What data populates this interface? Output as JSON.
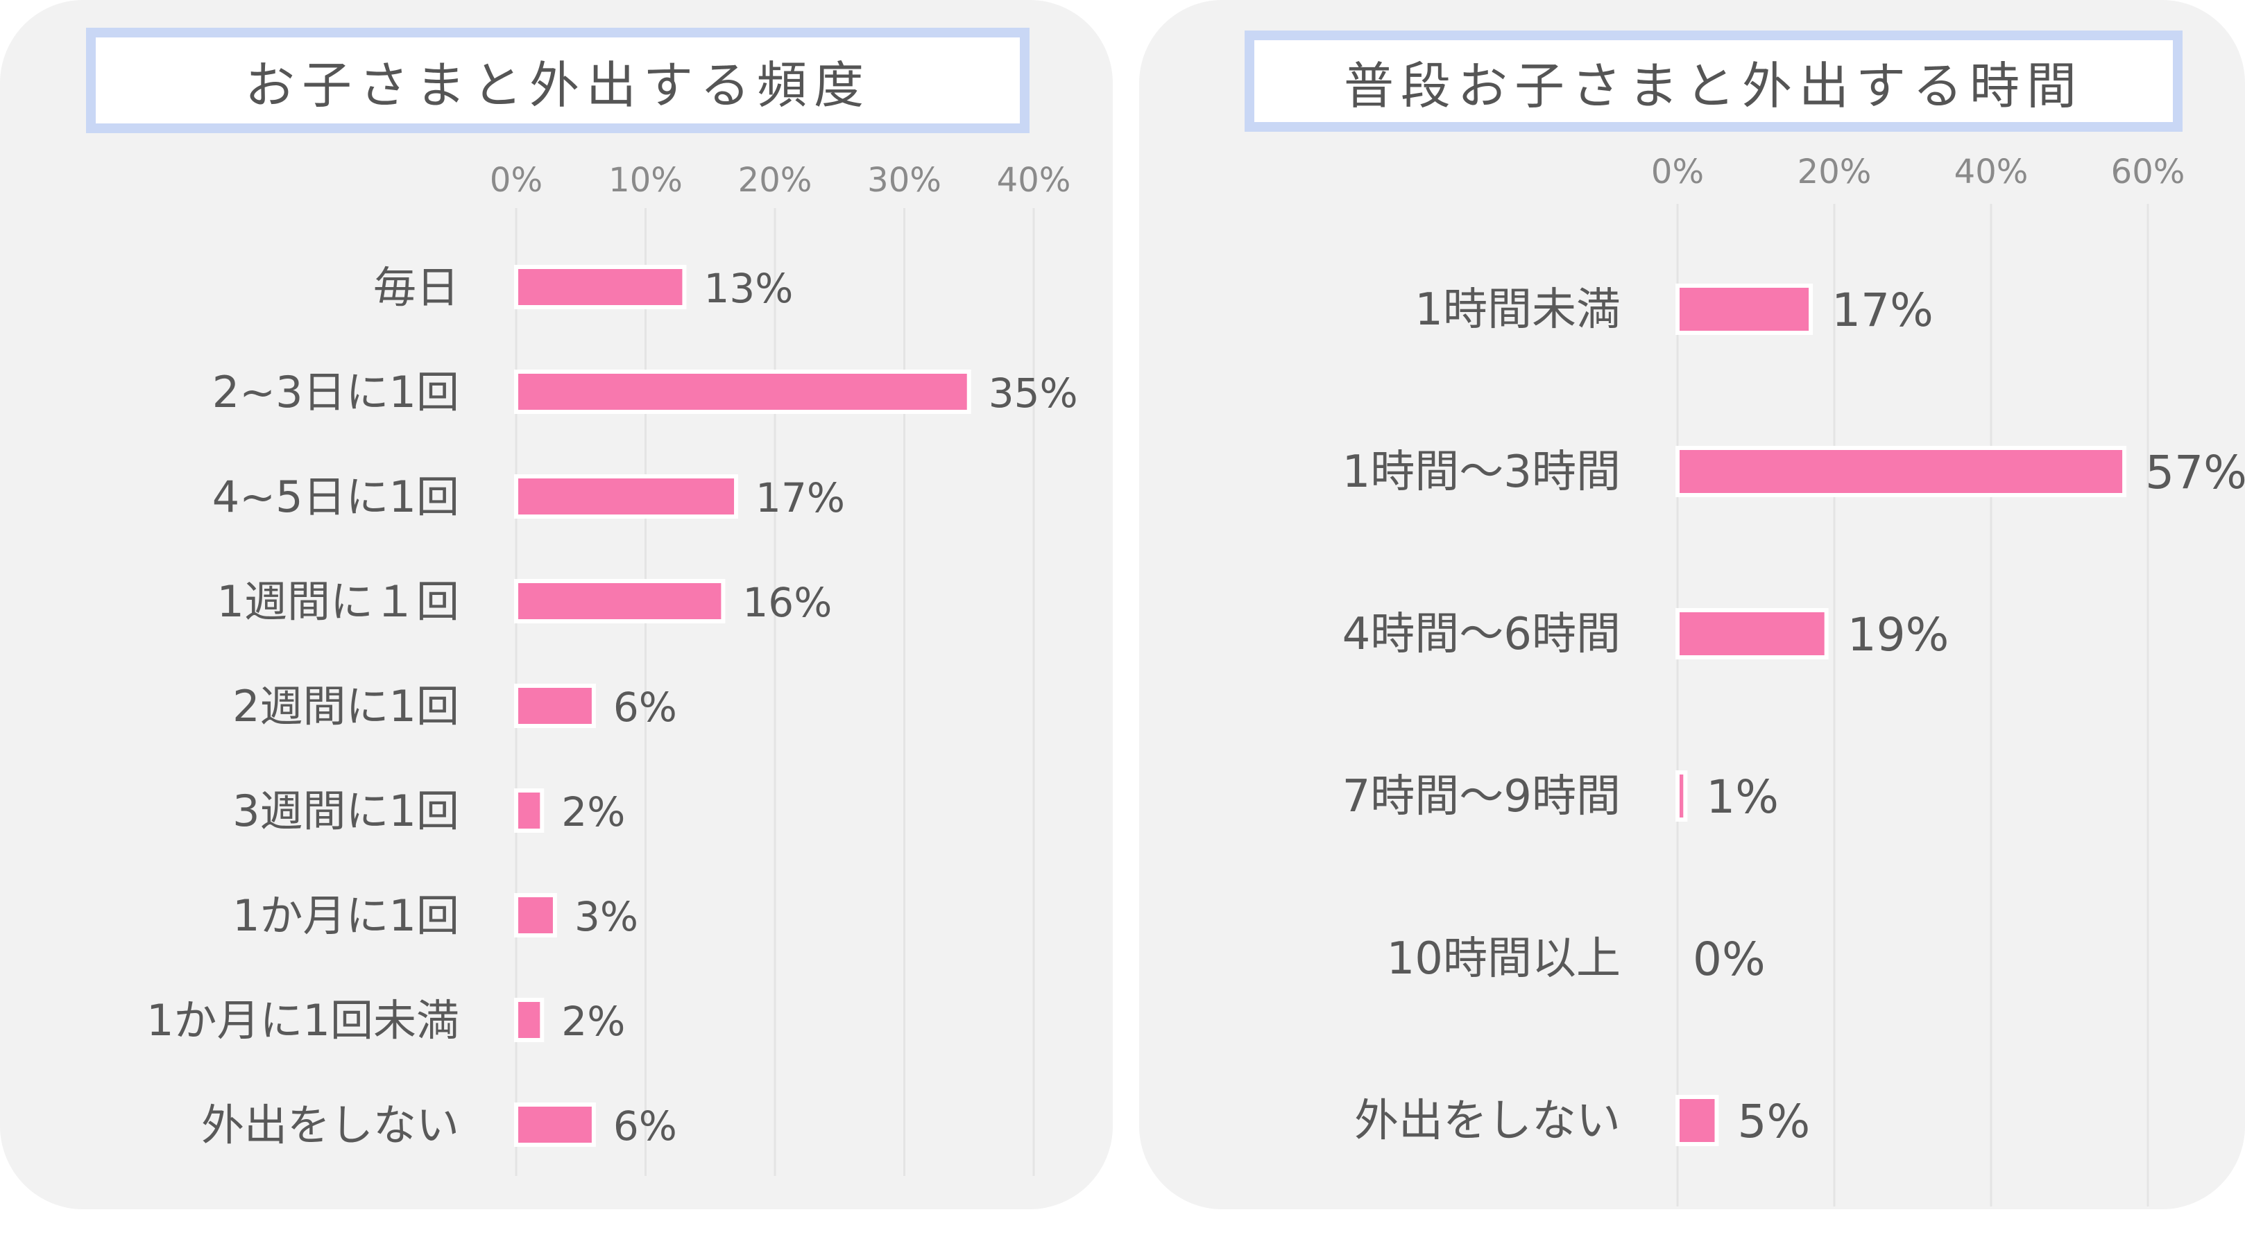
{
  "chart_data": [
    {
      "type": "bar",
      "orientation": "horizontal",
      "title": "お子さまと外出する頻度",
      "categories": [
        "毎日",
        "2~3日に1回",
        "4~5日に1回",
        "1週間に１回",
        "2週間に1回",
        "3週間に1回",
        "1か月に1回",
        "1か月に1回未満",
        "外出をしない"
      ],
      "values": [
        13,
        35,
        17,
        16,
        6,
        2,
        3,
        2,
        6
      ],
      "data_labels": [
        "13%",
        "35%",
        "17%",
        "16%",
        "6%",
        "2%",
        "3%",
        "2%",
        "6%"
      ],
      "xlim": [
        0,
        40
      ],
      "xticks": [
        "0%",
        "10%",
        "20%",
        "30%",
        "40%"
      ],
      "xaxis_position": "top",
      "grid": true,
      "bar_color": "#f878ae"
    },
    {
      "type": "bar",
      "orientation": "horizontal",
      "title": "普段お子さまと外出する時間",
      "categories": [
        "1時間未満",
        "1時間～3時間",
        "4時間～6時間",
        "7時間～9時間",
        "10時間以上",
        "外出をしない"
      ],
      "values": [
        17,
        57,
        19,
        1,
        0,
        5
      ],
      "data_labels": [
        "17%",
        "57%",
        "19%",
        "1%",
        "0%",
        "5%"
      ],
      "xlim": [
        0,
        60
      ],
      "xticks": [
        "0%",
        "20%",
        "40%",
        "60%"
      ],
      "xaxis_position": "top",
      "grid": true,
      "bar_color": "#f878ae"
    }
  ],
  "colors": {
    "panel_bg": "#f2f2f2",
    "title_border": "#c9d7f5",
    "bar": "#f878ae",
    "text": "#595959"
  }
}
